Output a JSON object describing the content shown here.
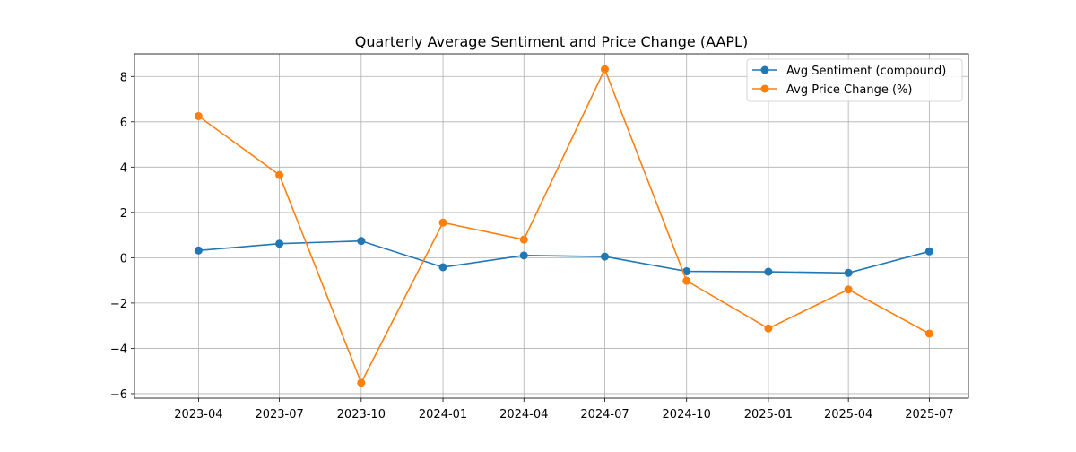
{
  "chart_data": {
    "type": "line",
    "title": "Quarterly Average Sentiment and Price Change (AAPL)",
    "xlabel": "",
    "ylabel": "",
    "categories": [
      "2023-04",
      "2023-07",
      "2023-10",
      "2024-01",
      "2024-04",
      "2024-07",
      "2024-10",
      "2025-01",
      "2025-04",
      "2025-07"
    ],
    "xlim": [
      "2023-01-19",
      "2025-08-14"
    ],
    "ylim": [
      -6.2,
      9.0
    ],
    "yticks": [
      -6,
      -4,
      -2,
      0,
      2,
      4,
      6,
      8
    ],
    "ytick_labels": [
      "−6",
      "−4",
      "−2",
      "0",
      "2",
      "4",
      "6",
      "8"
    ],
    "grid": true,
    "legend_position": "top-right",
    "series": [
      {
        "name": "Avg Sentiment (compound)",
        "color": "#1f77b4",
        "values": [
          0.32,
          0.62,
          0.74,
          -0.42,
          0.1,
          0.05,
          -0.6,
          -0.62,
          -0.67,
          0.28
        ]
      },
      {
        "name": "Avg Price Change (%)",
        "color": "#ff7f0e",
        "values": [
          6.25,
          3.65,
          -5.52,
          1.55,
          0.8,
          8.32,
          -1.02,
          -3.12,
          -1.4,
          -3.35
        ]
      }
    ]
  }
}
